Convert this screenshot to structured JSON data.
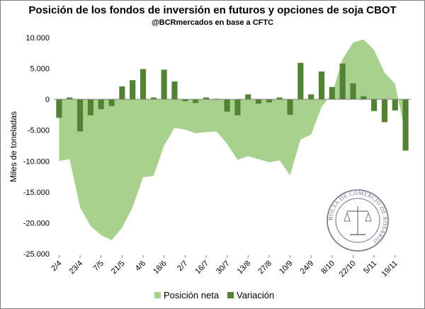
{
  "chart_data": {
    "type": "bar+area",
    "title": "Posición de los fondos de inversión en futuros y opciones de soja CBOT",
    "subtitle": "@BCRmercados en base a CFTC",
    "xlabel": "",
    "ylabel": "Miles de toneladas",
    "ylim": [
      -25000,
      10000
    ],
    "yticks": [
      -25000,
      -20000,
      -15000,
      -10000,
      -5000,
      0,
      5000,
      10000
    ],
    "ytick_labels": [
      "-25.000",
      "-20.000",
      "-15.000",
      "-10.000",
      "-5.000",
      "0",
      "5.000",
      "10.000"
    ],
    "x_tick_labels": [
      "2/4",
      "23/4",
      "7/5",
      "21/5",
      "4/6",
      "18/6",
      "2/7",
      "16/7",
      "30/7",
      "13/8",
      "27/8",
      "10/9",
      "24/9",
      "8/10",
      "22/10",
      "5/11",
      "19/11"
    ],
    "x_tick_every": 2,
    "n_points": 34,
    "series": [
      {
        "name": "Posición neta",
        "kind": "area",
        "color": "#a9d18e",
        "values": [
          -10000,
          -9700,
          -17500,
          -20500,
          -22000,
          -22800,
          -20800,
          -17500,
          -12600,
          -12400,
          -7500,
          -4600,
          -4900,
          -5500,
          -5300,
          -5200,
          -7200,
          -9800,
          -9200,
          -9700,
          -10200,
          -9900,
          -12300,
          -6500,
          -5700,
          -1200,
          900,
          6500,
          9200,
          9700,
          8000,
          4300,
          2500,
          -5800
        ]
      },
      {
        "name": "Variación",
        "kind": "bar",
        "color": "#548235",
        "values": [
          -3000,
          300,
          -5200,
          -2600,
          -1600,
          -1100,
          2100,
          3100,
          4900,
          300,
          4800,
          2900,
          -300,
          -600,
          300,
          100,
          -2000,
          -2600,
          800,
          -700,
          -500,
          300,
          -2500,
          5900,
          800,
          4500,
          2000,
          5800,
          2600,
          500,
          -1900,
          -3700,
          -1800,
          -8300
        ]
      }
    ],
    "legend": [
      "Posición neta",
      "Variación"
    ],
    "legend_position": "bottom",
    "grid": false
  },
  "watermark": {
    "text": "BOLSA DE COMERCIO DE ROSARIO",
    "color": "#6b7488"
  }
}
